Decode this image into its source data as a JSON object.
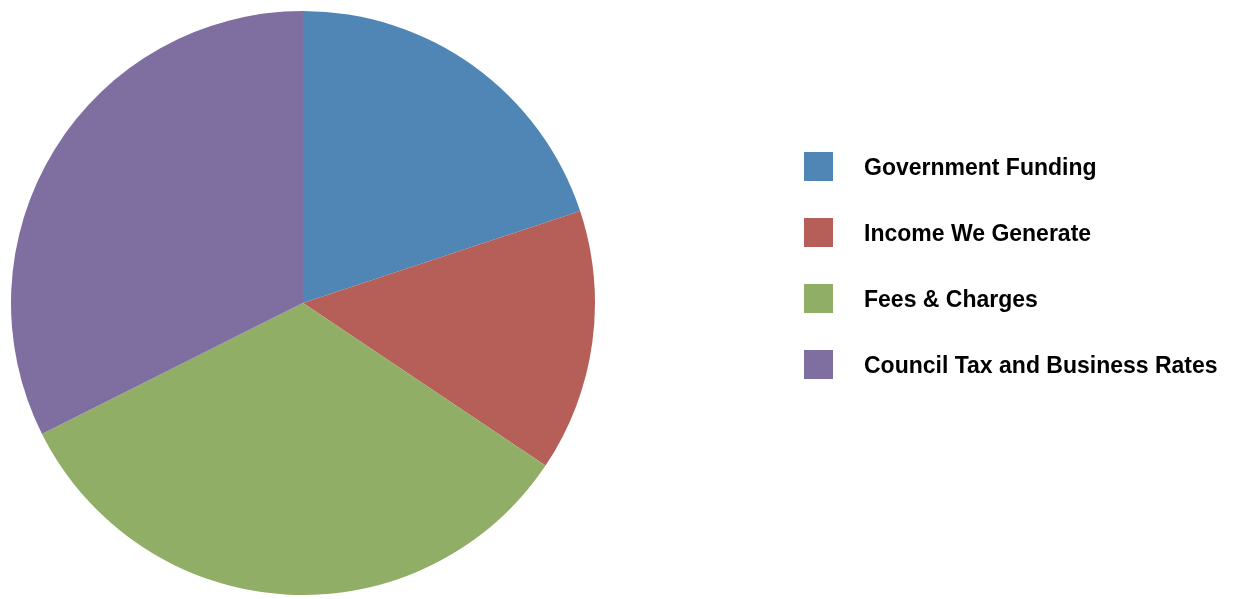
{
  "chart_data": {
    "type": "pie",
    "categories": [
      "Government Funding",
      "Income We Generate",
      "Fees & Charges",
      "Council Tax and Business Rates"
    ],
    "values": [
      19.9,
      14.5,
      33.2,
      32.4
    ],
    "colors": [
      "#5086b5",
      "#b55f58",
      "#91ae67",
      "#7f6ea0"
    ],
    "legend": "right"
  }
}
